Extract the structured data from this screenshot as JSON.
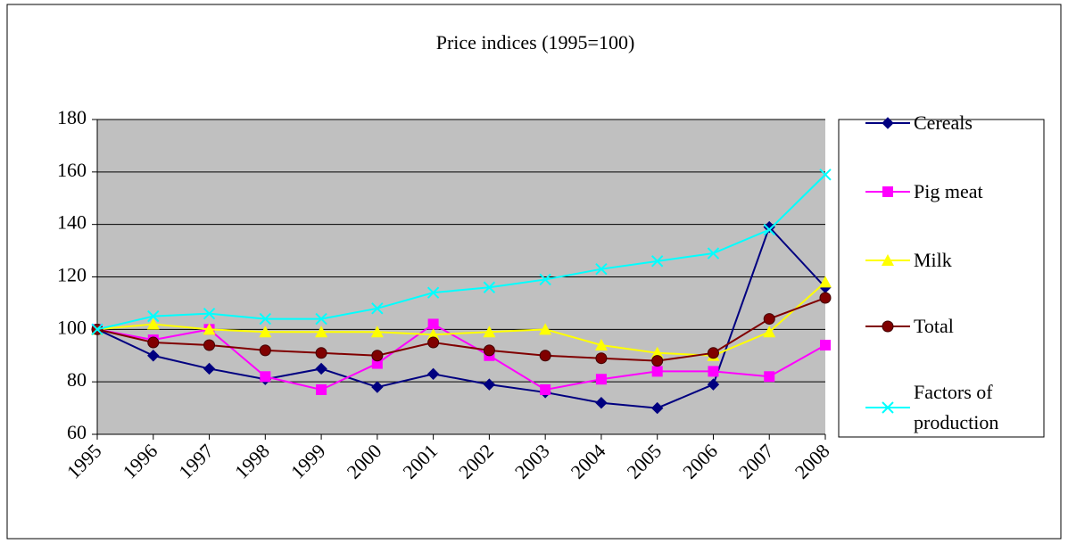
{
  "chart_data": {
    "type": "line",
    "title": "Price indices (1995=100)",
    "categories": [
      "1995",
      "1996",
      "1997",
      "1998",
      "1999",
      "2000",
      "2001",
      "2002",
      "2003",
      "2004",
      "2005",
      "2006",
      "2007",
      "2008"
    ],
    "series": [
      {
        "name": "Cereals",
        "color": "#000080",
        "values": [
          100,
          90,
          85,
          81,
          85,
          78,
          83,
          79,
          76,
          72,
          70,
          79,
          139,
          116
        ]
      },
      {
        "name": "Pig meat",
        "color": "#ff00ff",
        "values": [
          100,
          96,
          100,
          82,
          77,
          87,
          102,
          90,
          77,
          81,
          84,
          84,
          82,
          94
        ]
      },
      {
        "name": "Milk",
        "color": "#ffff00",
        "values": [
          100,
          102,
          100,
          99,
          99,
          99,
          98,
          99,
          100,
          94,
          91,
          90,
          99,
          118
        ]
      },
      {
        "name": "Total",
        "color": "#800000",
        "values": [
          100,
          95,
          94,
          92,
          91,
          90,
          95,
          92,
          90,
          89,
          88,
          91,
          104,
          112
        ]
      },
      {
        "name": "Factors of production",
        "color": "#00ffff",
        "values": [
          100,
          105,
          106,
          104,
          104,
          108,
          114,
          116,
          119,
          123,
          126,
          129,
          138,
          159
        ]
      }
    ],
    "ylim": [
      60,
      180
    ],
    "yticks": [
      60,
      80,
      100,
      120,
      140,
      160,
      180
    ],
    "grid": true
  }
}
